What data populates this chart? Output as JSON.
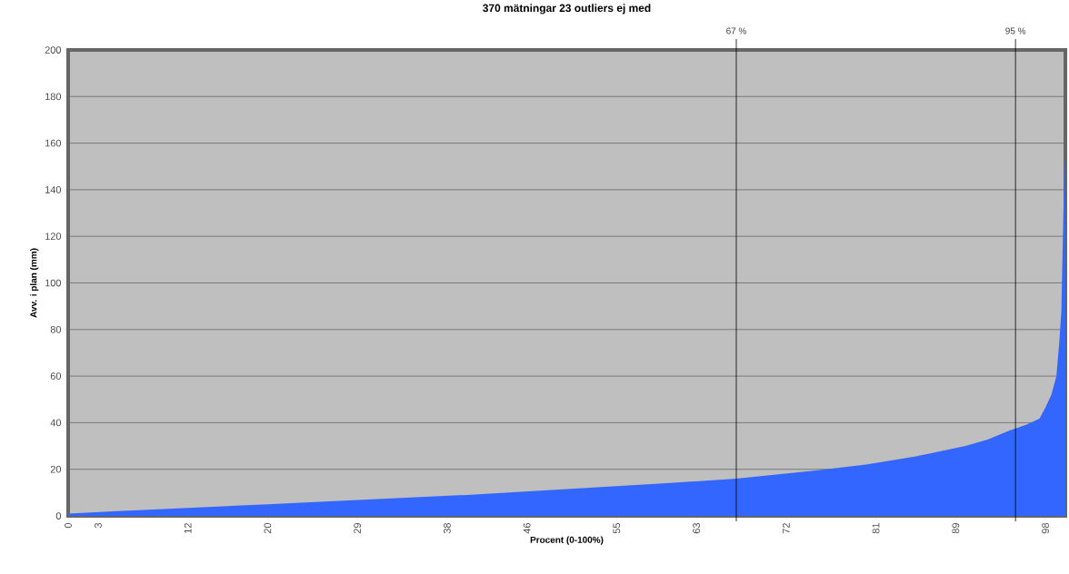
{
  "chart_data": {
    "type": "area",
    "title": "370 mätningar 23 outliers ej med",
    "xlabel": "Procent (0-100%)",
    "ylabel": "Avv. i plan (mm)",
    "x": [
      0,
      5,
      10,
      20,
      30,
      40,
      50,
      60,
      67,
      75,
      80,
      85,
      90,
      92.2,
      94.4,
      96,
      97.4,
      98,
      98.6,
      99.1,
      99.4,
      99.6,
      99.8,
      100
    ],
    "values": [
      1,
      2,
      3,
      5,
      7,
      9,
      11.5,
      14,
      16,
      19.5,
      22,
      25.5,
      30,
      32.7,
      36.6,
      39,
      41.7,
      46.5,
      52,
      60,
      75,
      88,
      130,
      155
    ],
    "color": "#3366ff",
    "xlim": [
      0,
      100
    ],
    "ylim": [
      0,
      200
    ],
    "xticks": [
      0,
      3,
      12,
      20,
      29,
      38,
      46,
      55,
      63,
      72,
      81,
      89,
      98
    ],
    "yticks": [
      0,
      20,
      40,
      60,
      80,
      100,
      120,
      140,
      160,
      180,
      200
    ],
    "grid": "y",
    "ref_lines": [
      {
        "axis": "x",
        "value": 67,
        "label": "67 %"
      },
      {
        "axis": "x",
        "value": 95,
        "label": "95 %"
      }
    ]
  }
}
